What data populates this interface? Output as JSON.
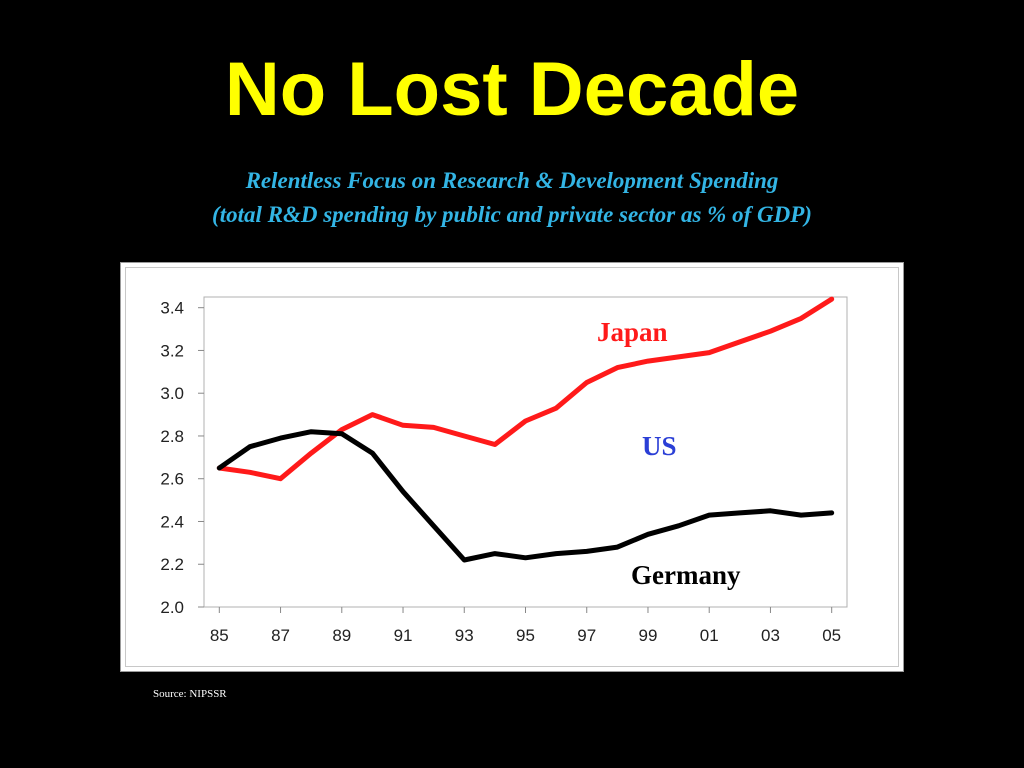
{
  "slide": {
    "title": "No Lost Decade",
    "subtitle_line1": "Relentless Focus on Research & Development Spending",
    "subtitle_line2": "(total R&D spending by public and private sector as % of GDP)",
    "source": "Source: NIPSSR"
  },
  "colors": {
    "title": "#ffff00",
    "subtitle": "#33b5e5",
    "background": "#000000",
    "japan": "#ff1a1a",
    "germany": "#000000",
    "us_label": "#2b3fd6"
  },
  "chart_data": {
    "type": "line",
    "x": [
      85,
      86,
      87,
      88,
      89,
      90,
      91,
      92,
      93,
      94,
      95,
      96,
      97,
      98,
      99,
      100,
      101,
      102,
      103,
      104,
      105
    ],
    "x_tick_labels": [
      "85",
      "87",
      "89",
      "91",
      "93",
      "95",
      "97",
      "99",
      "01",
      "03",
      "05"
    ],
    "y_tick_labels": [
      "2.0",
      "2.2",
      "2.4",
      "2.6",
      "2.8",
      "3.0",
      "3.2",
      "3.4"
    ],
    "ylim": [
      2.0,
      3.45
    ],
    "xlim": [
      84.5,
      105.5
    ],
    "grid": false,
    "series": [
      {
        "name": "Japan",
        "color": "#ff1a1a",
        "values": [
          2.65,
          2.63,
          2.6,
          2.72,
          2.83,
          2.9,
          2.85,
          2.84,
          2.8,
          2.76,
          2.87,
          2.93,
          3.05,
          3.12,
          3.15,
          3.17,
          3.19,
          3.24,
          3.29,
          3.35,
          3.44
        ]
      },
      {
        "name": "Germany",
        "color": "#000000",
        "values": [
          2.65,
          2.75,
          2.79,
          2.82,
          2.81,
          2.72,
          2.54,
          2.38,
          2.22,
          2.25,
          2.23,
          2.25,
          2.26,
          2.28,
          2.34,
          2.38,
          2.43,
          2.44,
          2.45,
          2.43,
          2.44
        ]
      }
    ],
    "labels": [
      {
        "text": "Japan",
        "color": "#ff1a1a"
      },
      {
        "text": "US",
        "color": "#2b3fd6"
      },
      {
        "text": "Germany",
        "color": "#000000"
      }
    ]
  }
}
